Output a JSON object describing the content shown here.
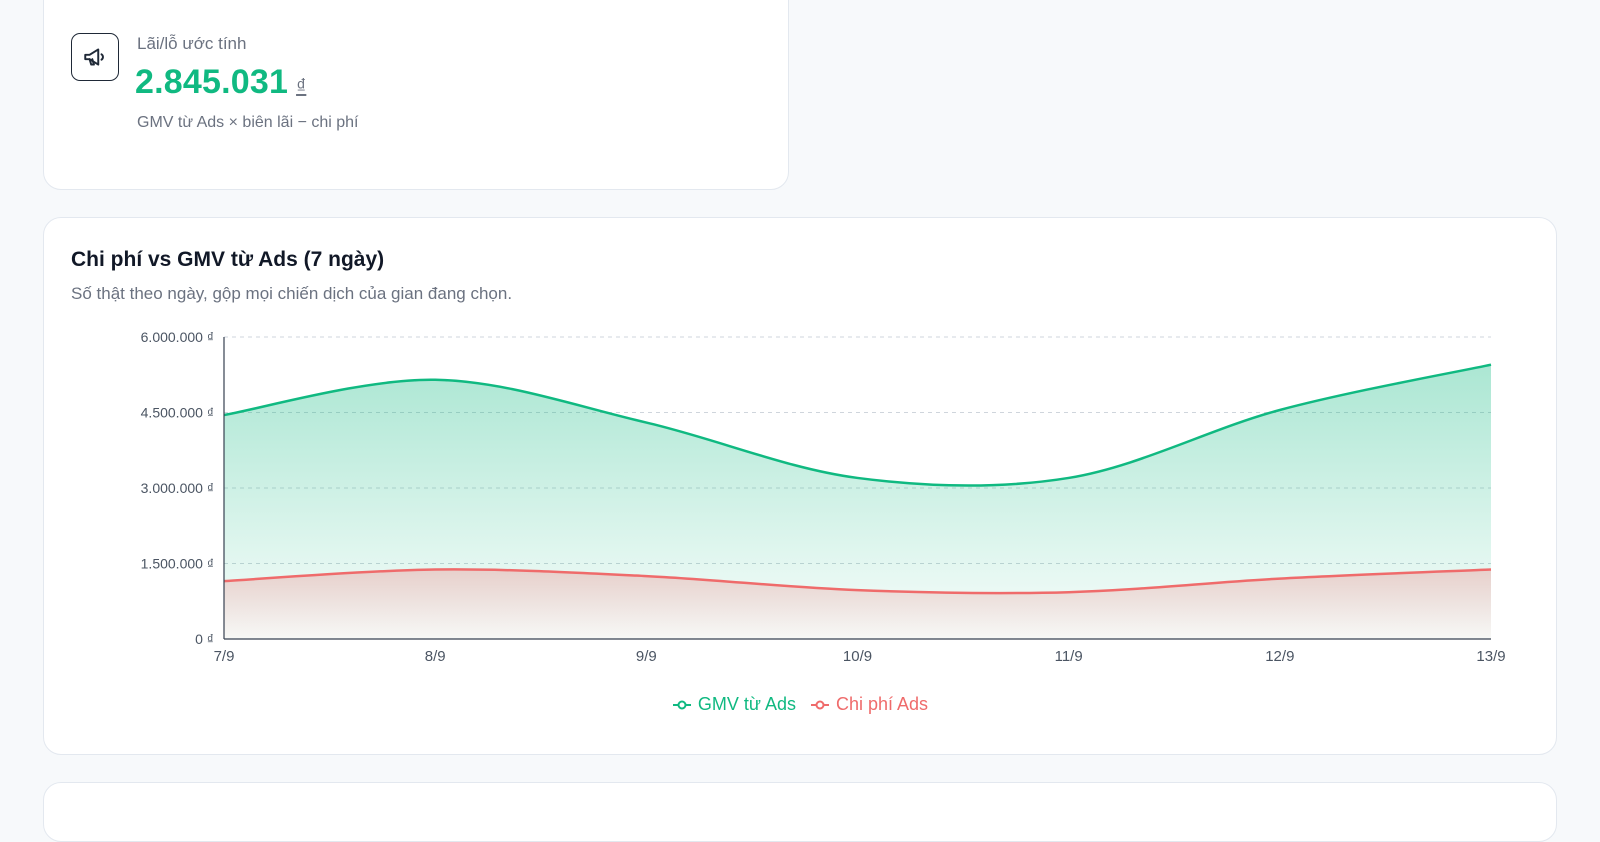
{
  "profit_card": {
    "icon": "megaphone-icon",
    "label": "Lãi/lỗ ước tính",
    "value": "2.845.031",
    "currency": "₫",
    "note": "GMV từ Ads × biên lãi − chi phí"
  },
  "chart_card": {
    "title": "Chi phí vs GMV từ Ads (7 ngày)",
    "subtitle": "Số thật theo ngày, gộp mọi chiến dịch của gian đang chọn."
  },
  "chart_data": {
    "type": "area",
    "categories": [
      "7/9",
      "8/9",
      "9/9",
      "10/9",
      "11/9",
      "12/9",
      "13/9"
    ],
    "series": [
      {
        "name": "GMV từ Ads",
        "color": "#10b981",
        "values": [
          4450000,
          5150000,
          4300000,
          3200000,
          3200000,
          4550000,
          5450000
        ]
      },
      {
        "name": "Chi phí Ads",
        "color": "#ef6b6b",
        "values": [
          1150000,
          1380000,
          1250000,
          970000,
          930000,
          1200000,
          1380000
        ]
      }
    ],
    "ylim": [
      0,
      6000000
    ],
    "yticks": [
      0,
      1500000,
      3000000,
      4500000,
      6000000
    ],
    "ytick_labels": [
      "0 ₫",
      "1.500.000 ₫",
      "3.000.000 ₫",
      "4.500.000 ₫",
      "6.000.000 ₫"
    ],
    "grid": true,
    "legend": "bottom-center"
  }
}
